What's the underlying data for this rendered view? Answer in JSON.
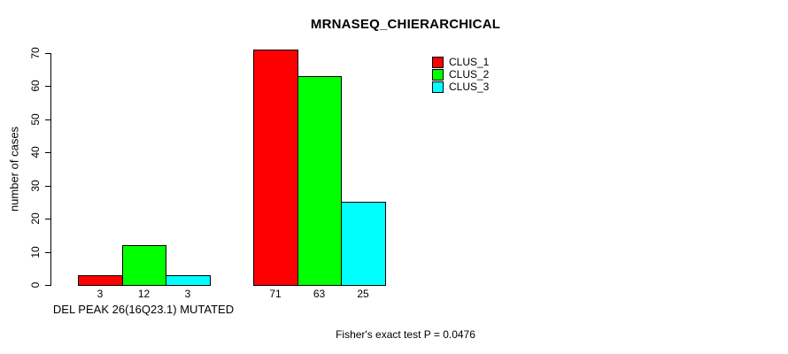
{
  "chart_data": {
    "type": "bar",
    "title": "MRNASEQ_CHIERARCHICAL",
    "xlabel": "",
    "ylabel": "number of cases",
    "ylim": [
      0,
      70
    ],
    "yticks": [
      0,
      10,
      20,
      30,
      40,
      50,
      60,
      70
    ],
    "grid": false,
    "legend_position": "top-right",
    "categories": [
      "DEL PEAK 26(16Q23.1) MUTATED",
      ""
    ],
    "series": [
      {
        "name": "CLUS_1",
        "color": "#ff0000",
        "values": [
          3,
          71
        ]
      },
      {
        "name": "CLUS_2",
        "color": "#00ff00",
        "values": [
          12,
          63
        ]
      },
      {
        "name": "CLUS_3",
        "color": "#00ffff",
        "values": [
          3,
          25
        ]
      }
    ],
    "bar_value_labels": [
      [
        3,
        12,
        3
      ],
      [
        71,
        63,
        25
      ]
    ],
    "annotation": "Fisher's exact test P = 0.0476"
  }
}
